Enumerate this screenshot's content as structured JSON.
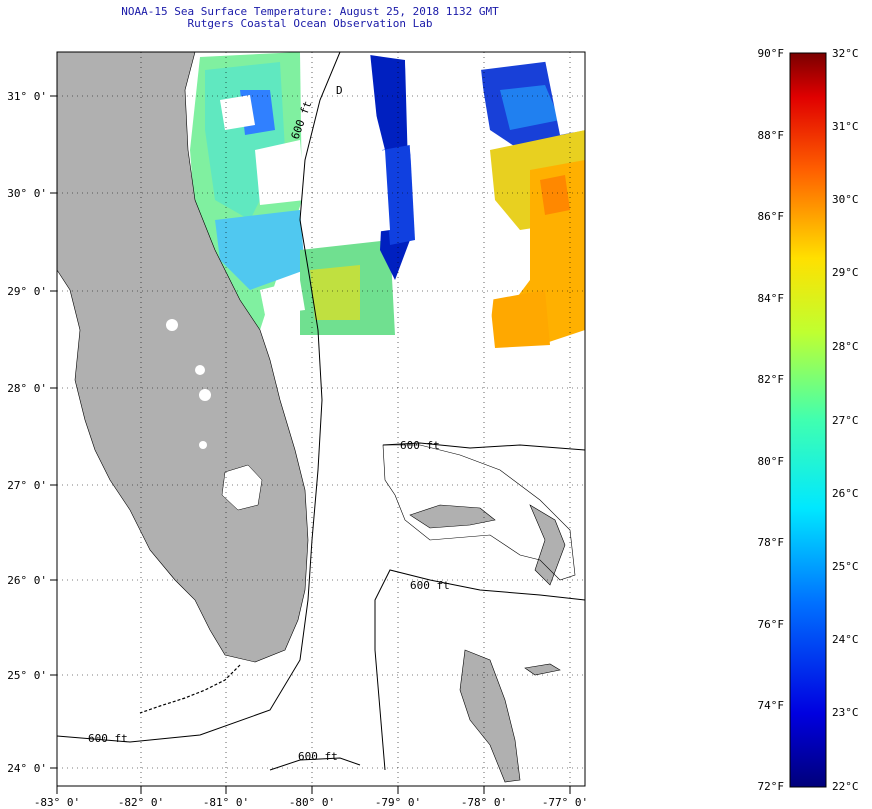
{
  "title": {
    "line1": "NOAA-15 Sea Surface Temperature:  August 25, 2018 1132 GMT",
    "line2": "Rutgers Coastal Ocean Observation Lab"
  },
  "map": {
    "lon_labels": [
      "-83° 0'",
      "-82° 0'",
      "-81° 0'",
      "-80° 0'",
      "-79° 0'",
      "-78° 0'",
      "-77° 0'"
    ],
    "lat_labels": [
      "31° 0'",
      "30° 0'",
      "29° 0'",
      "28° 0'",
      "27° 0'",
      "26° 0'",
      "25° 0'",
      "24° 0'"
    ],
    "contour_label": "600 ft",
    "marker_label": "D",
    "land_color": "#b0b0b0"
  },
  "colorbar": {
    "fahrenheit": [
      "90°F",
      "88°F",
      "86°F",
      "84°F",
      "82°F",
      "80°F",
      "78°F",
      "76°F",
      "74°F",
      "72°F"
    ],
    "celsius": [
      "32°C",
      "31°C",
      "30°C",
      "29°C",
      "28°C",
      "27°C",
      "26°C",
      "25°C",
      "24°C",
      "23°C",
      "22°C"
    ]
  }
}
